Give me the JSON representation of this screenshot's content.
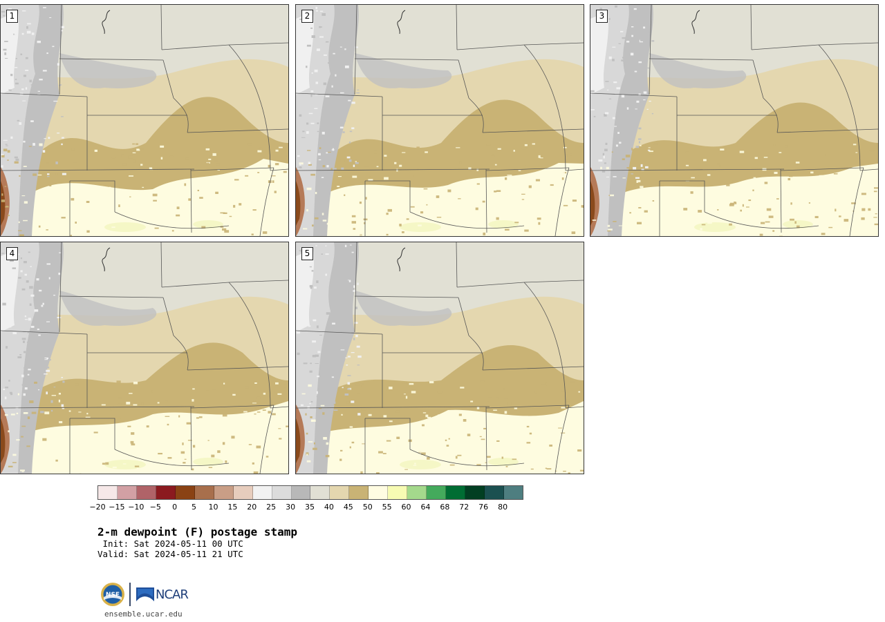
{
  "stamps": [
    {
      "label": "1"
    },
    {
      "label": "2"
    },
    {
      "label": "3"
    },
    {
      "label": "4"
    },
    {
      "label": "5"
    }
  ],
  "map_colors": {
    "frozen_light": "#f0f0f0",
    "lt30": "#c0c0c0",
    "c30_35": "#d8d8d8",
    "c35_40": "#e1e0d4",
    "c40_45": "#e4d7af",
    "c45_50": "#c9b375",
    "c50_55": "#fefce0",
    "c55_60": "#f5f7c6",
    "brown_dark": "#8a4a1c",
    "brown_mid": "#b57a58",
    "border": "#555555"
  },
  "colorbar": {
    "colors": [
      "#f6e8e8",
      "#d2a0a4",
      "#b06368",
      "#8b1a1f",
      "#8a4214",
      "#a86f4c",
      "#c99e86",
      "#e7cdbd",
      "#f2f2f2",
      "#dcdcdc",
      "#b8b8b8",
      "#e1e0d4",
      "#e4d7af",
      "#c9b375",
      "#fffce2",
      "#f7fbb3",
      "#a4d98c",
      "#44aa5c",
      "#006d33",
      "#023f22",
      "#1b5050",
      "#4e7e80"
    ],
    "tick_labels": [
      "−20",
      "−15",
      "−10",
      "−5",
      "0",
      "5",
      "10",
      "15",
      "20",
      "25",
      "30",
      "35",
      "40",
      "45",
      "50",
      "55",
      "60",
      "64",
      "68",
      "72",
      "76",
      "80"
    ]
  },
  "title": "2-m dewpoint (F) postage stamp",
  "init": " Init: Sat 2024-05-11 00 UTC",
  "valid": "Valid: Sat 2024-05-11 21 UTC",
  "logos": {
    "nsf_text": "NSF",
    "ncar_text": "NCAR"
  },
  "site": "ensemble.ucar.edu"
}
